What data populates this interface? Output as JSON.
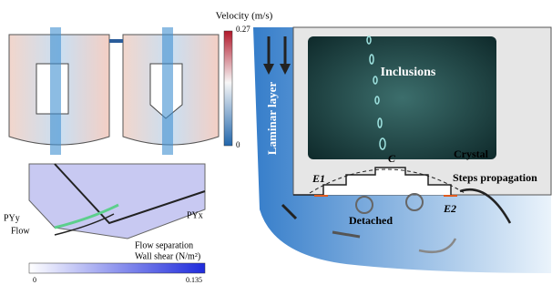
{
  "velocity_bar": {
    "title": "Velocity (m/s)",
    "max_label": "0.27",
    "min_label": "0"
  },
  "wall_panel": {
    "labels": [
      "PYy",
      "Flow",
      "PYx",
      "Flow separation"
    ],
    "scale_title": "Wall shear (N/m²)",
    "scale_min": "0",
    "scale_max": "0.135"
  },
  "schematic": {
    "side_label": "Laminar layer",
    "inclusions": "Inclusions",
    "center": "C",
    "crystal": "Crystal",
    "edge_left": "E1",
    "steps": "Steps propagation",
    "edge_right": "E2",
    "detached": "Detached"
  }
}
